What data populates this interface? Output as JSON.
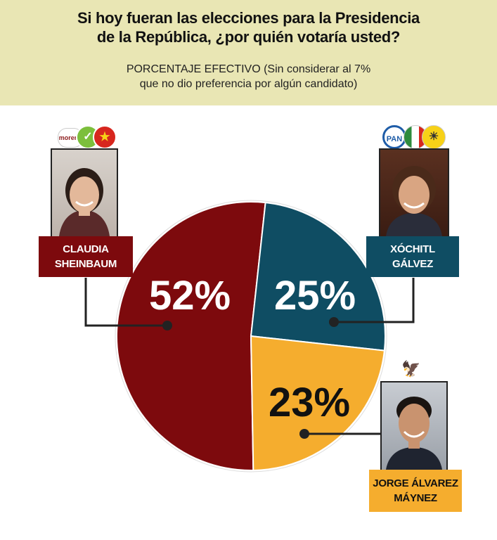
{
  "header": {
    "title_line1": "Si hoy fueran las elecciones para la Presidencia",
    "title_line2": "de la República, ¿por quién votaría usted?",
    "subtitle_line1": "PORCENTAJE EFECTIVO (Sin considerar al 7%",
    "subtitle_line2": "que no dio preferencia por algún candidato)"
  },
  "chart_data": {
    "type": "pie",
    "title": "Si hoy fueran las elecciones para la Presidencia de la República, ¿por quién votaría usted?",
    "subtitle": "PORCENTAJE EFECTIVO (Sin considerar al 7% que no dio preferencia por algún candidato)",
    "slices": [
      {
        "label": "CLAUDIA SHEINBAUM",
        "value": 52,
        "value_label": "52%",
        "color": "#7d0a0d"
      },
      {
        "label": "XÓCHITL GÁLVEZ",
        "value": 25,
        "value_label": "25%",
        "color": "#0f4d63"
      },
      {
        "label": "JORGE ÁLVAREZ MÁYNEZ",
        "value": 23,
        "value_label": "23%",
        "color": "#f5ad2e"
      }
    ]
  },
  "candidates": {
    "sheinbaum": {
      "name_line1": "CLAUDIA",
      "name_line2": "SHEINBAUM",
      "box_color": "#7d0a0d",
      "logos": [
        "morena",
        "pvem-icon",
        "pt-icon"
      ],
      "logo_text": "morena"
    },
    "galvez": {
      "name_line1": "XÓCHITL",
      "name_line2": "GÁLVEZ",
      "box_color": "#0f4d63",
      "logos": [
        "pan-icon",
        "pri-icon",
        "prd-icon"
      ],
      "logo_text": "PAN"
    },
    "maynez": {
      "name_line1": "JORGE ÁLVAREZ",
      "name_line2": "MÁYNEZ",
      "box_color": "#f5ad2e",
      "logos": [
        "movimiento-ciudadano-icon"
      ]
    }
  }
}
